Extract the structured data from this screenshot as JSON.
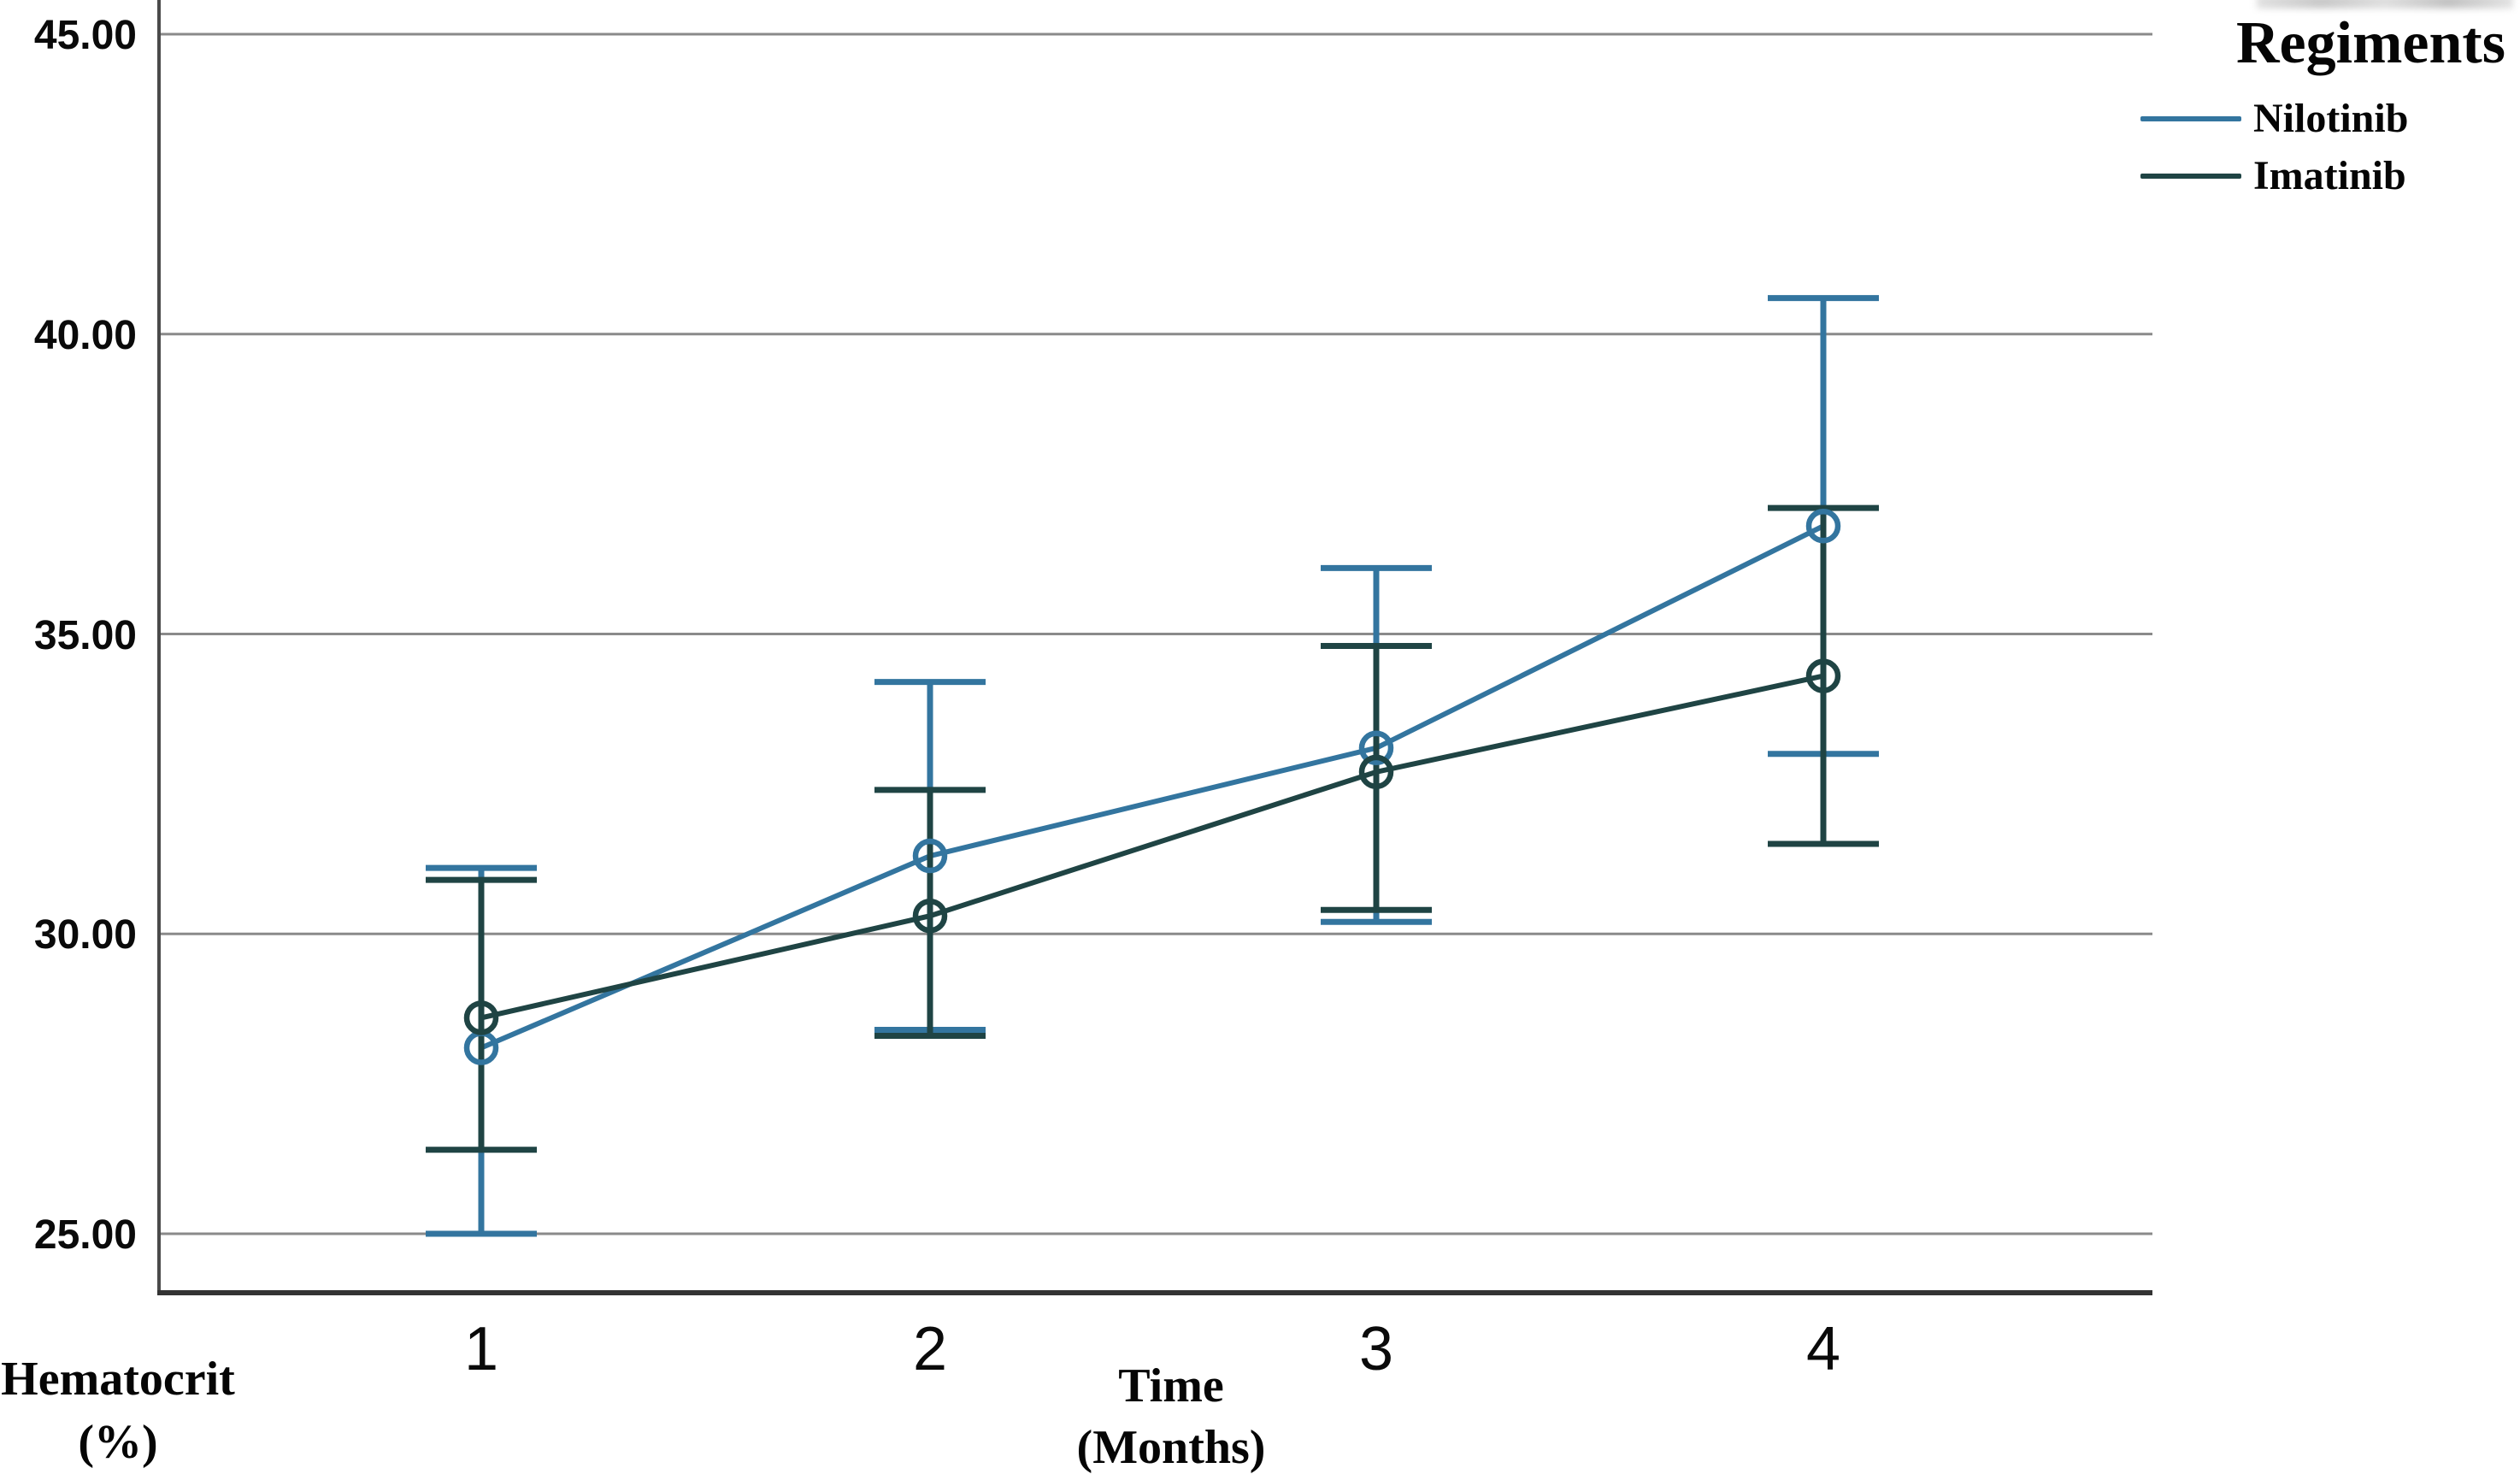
{
  "figure": {
    "background": "#ffffff",
    "legend": {
      "title": "Regiments",
      "items": [
        {
          "label": "Nilotinib",
          "color": "#33759f"
        },
        {
          "label": "Imatinib",
          "color": "#1f4444"
        }
      ]
    },
    "y_axis": {
      "title_line1": "Hematocrit",
      "title_line2": "(%)"
    },
    "x_axis": {
      "title_line1": "Time",
      "title_line2": "(Months)"
    }
  },
  "chart_data": {
    "type": "line",
    "title": "",
    "legend_title": "Regiments",
    "xlabel": "Time (Months)",
    "ylabel": "Hematocrit (%)",
    "x": [
      1,
      2,
      3,
      4
    ],
    "xtick_labels": [
      "1",
      "2",
      "3",
      "4"
    ],
    "yticks": [
      25,
      30,
      35,
      40,
      45
    ],
    "ytick_labels": [
      "25.00",
      "30.00",
      "35.00",
      "40.00",
      "45.00"
    ],
    "ylim": [
      24.0,
      45.6
    ],
    "grid": true,
    "legend_position": "top-right",
    "marker": "open-circle",
    "series": [
      {
        "name": "Nilotinib",
        "color": "#33759f",
        "means": [
          28.1,
          31.3,
          33.1,
          36.8
        ],
        "ci_low": [
          25.0,
          28.4,
          30.2,
          33.0
        ],
        "ci_high": [
          31.1,
          34.2,
          36.1,
          40.6
        ]
      },
      {
        "name": "Imatinib",
        "color": "#1f4444",
        "means": [
          28.6,
          30.3,
          32.7,
          34.3
        ],
        "ci_low": [
          26.4,
          28.3,
          30.4,
          31.5
        ],
        "ci_high": [
          30.9,
          32.4,
          34.8,
          37.1
        ]
      }
    ]
  }
}
